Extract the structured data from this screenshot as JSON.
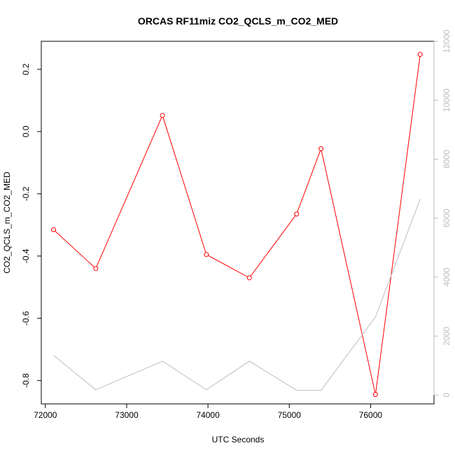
{
  "chart_data": {
    "type": "line",
    "title": "ORCAS RF11miz CO2_QCLS_m_CO2_MED",
    "xlabel": "UTC Seconds",
    "ylabel": "CO2_QCLS_m_CO2_MED",
    "xlim": [
      71950,
      76780
    ],
    "ylim": [
      -0.875,
      0.29
    ],
    "y2lim": [
      -300,
      12000
    ],
    "x_ticks": [
      72000,
      73000,
      74000,
      75000,
      76000
    ],
    "y_ticks": [
      -0.8,
      -0.6,
      -0.4,
      -0.2,
      0.0,
      0.2
    ],
    "y_tick_labels": [
      "-0.8",
      "-0.6",
      "-0.4",
      "-0.2",
      "0.0",
      "0.2"
    ],
    "y2_ticks": [
      0,
      2000,
      4000,
      6000,
      8000,
      10000,
      12000
    ],
    "series": [
      {
        "axis": "left",
        "color": "#ff0000",
        "markers": "open-circle",
        "x": [
          72100,
          72620,
          73440,
          73980,
          74510,
          75090,
          75390,
          76060,
          76610
        ],
        "y": [
          -0.315,
          -0.44,
          0.052,
          -0.395,
          -0.47,
          -0.265,
          -0.055,
          -0.845,
          0.248
        ]
      },
      {
        "axis": "right",
        "color": "#bebebe",
        "markers": "none",
        "x": [
          72100,
          72620,
          73440,
          73980,
          74510,
          75090,
          75390,
          76060,
          76610
        ],
        "y": [
          1350,
          180,
          1150,
          180,
          1150,
          160,
          160,
          2650,
          6650
        ]
      }
    ]
  }
}
